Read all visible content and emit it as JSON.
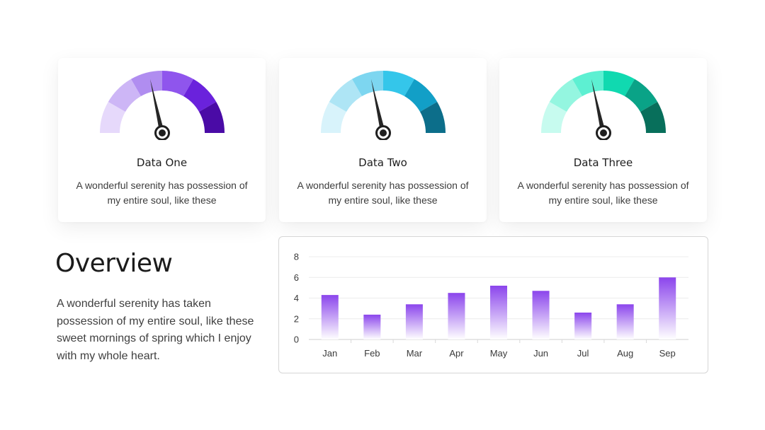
{
  "cards": [
    {
      "title": "Data One",
      "description": "A wonderful serenity has possession of my entire soul, like these",
      "gauge": {
        "segment_colors": [
          "#e6d9fb",
          "#cdb6f6",
          "#b08df0",
          "#8f55ed",
          "#6a22dc",
          "#4a0ba6"
        ],
        "needle_value": 0.43,
        "needle_color": "#262626"
      }
    },
    {
      "title": "Data Two",
      "description": "A wonderful serenity has possession of my entire soul, like these",
      "gauge": {
        "segment_colors": [
          "#d8f3fb",
          "#aee5f5",
          "#7dd6f0",
          "#34c6ea",
          "#129fc7",
          "#0c6e8a"
        ],
        "needle_value": 0.43,
        "needle_color": "#262626"
      }
    },
    {
      "title": "Data Three",
      "description": "A wonderful serenity has possession of my entire soul, like these",
      "gauge": {
        "segment_colors": [
          "#c7fbef",
          "#94f6e0",
          "#5df0d2",
          "#10d9b0",
          "#0aa387",
          "#086f5b"
        ],
        "needle_value": 0.43,
        "needle_color": "#262626"
      }
    }
  ],
  "overview": {
    "title": "Overview",
    "text": "A wonderful serenity has taken possession of my entire soul, like these sweet mornings of spring which I enjoy with my whole heart."
  },
  "chart_data": {
    "type": "bar",
    "categories": [
      "Jan",
      "Feb",
      "Mar",
      "Apr",
      "May",
      "Jun",
      "Jul",
      "Aug",
      "Sep"
    ],
    "values": [
      4.3,
      2.4,
      3.4,
      4.5,
      5.2,
      4.7,
      2.6,
      3.4,
      6.0
    ],
    "yticks": [
      0,
      2,
      4,
      6,
      8
    ],
    "ylim": [
      0,
      8
    ],
    "title": "",
    "xlabel": "",
    "ylabel": "",
    "grid": true,
    "bar_color_top": "#8b45ec",
    "bar_color_bottom": "#ffffff"
  }
}
